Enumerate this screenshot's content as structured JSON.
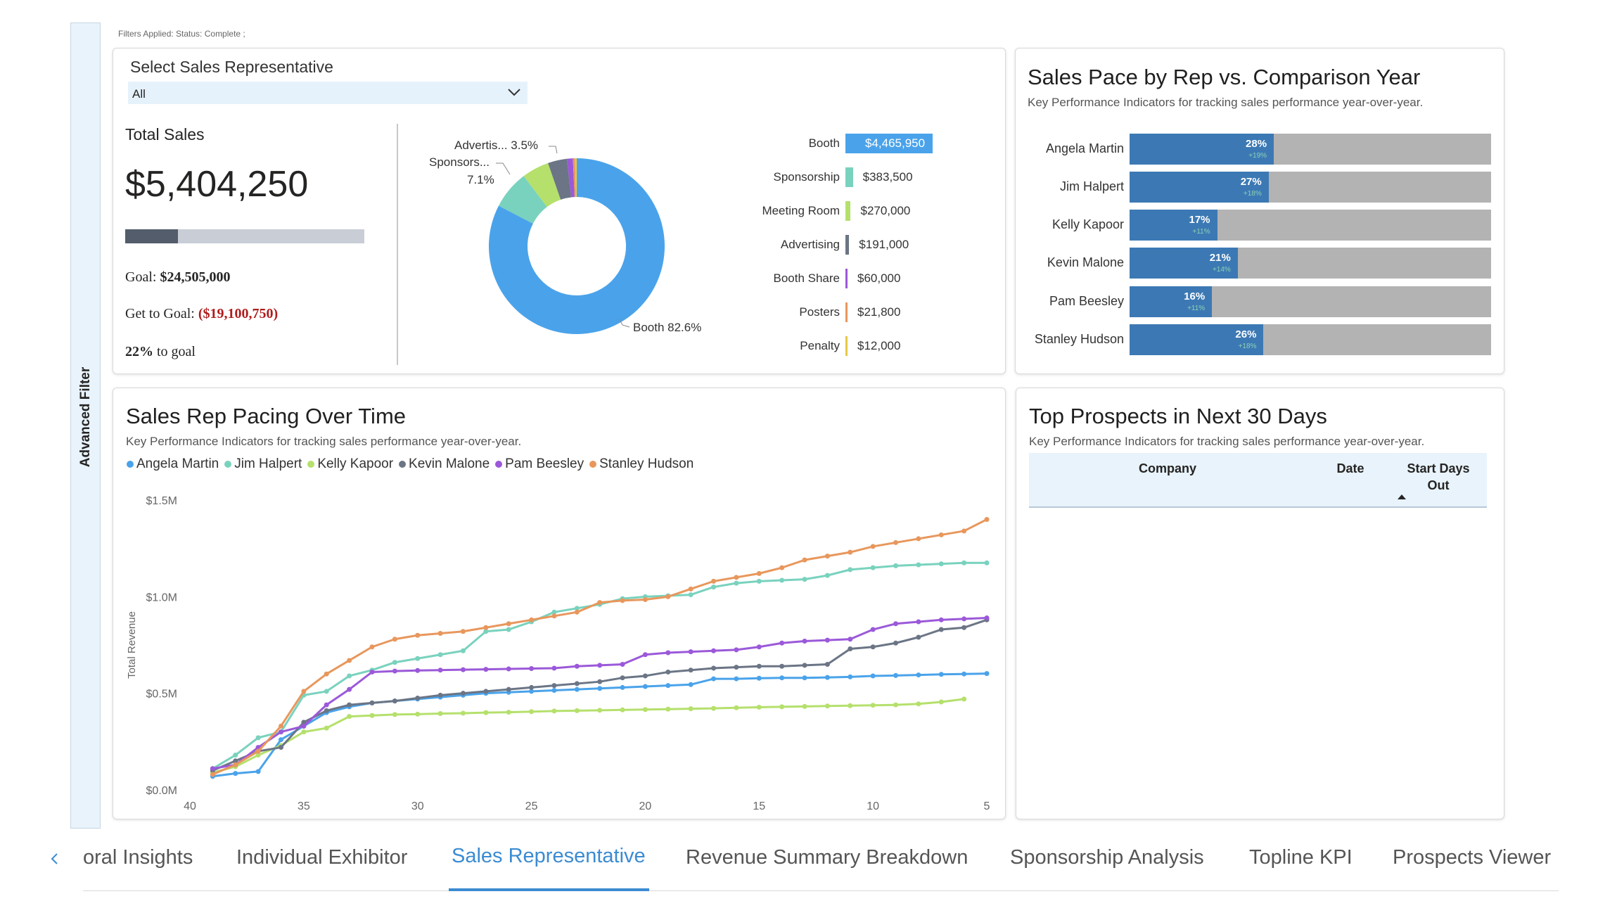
{
  "advanced_filter_label": "Advanced Filter",
  "filters_applied": "Filters Applied: Status: Complete ;",
  "selector": {
    "label": "Select Sales Representative",
    "value": "All"
  },
  "total_sales": {
    "label": "Total Sales",
    "value": "$5,404,250",
    "progress_fraction": 0.22,
    "goal_label": "Goal: ",
    "goal_value": "$24,505,000",
    "get_to_goal_label": "Get to Goal: ",
    "get_to_goal_value": "($19,100,750)",
    "pct_value": "22%",
    "pct_suffix": " to goal",
    "neg_color": "#b01c1c"
  },
  "donut": {
    "slices": [
      {
        "name": "Booth",
        "pct": 82.6,
        "color": "#4aa3ea"
      },
      {
        "name": "Sponsorship",
        "pct": 7.1,
        "color": "#79d2be"
      },
      {
        "name": "Meeting Room",
        "pct": 5.0,
        "color": "#b5e06c"
      },
      {
        "name": "Advertising",
        "pct": 3.5,
        "color": "#6b7585"
      },
      {
        "name": "Booth Share",
        "pct": 1.1,
        "color": "#9b59d9"
      },
      {
        "name": "Posters",
        "pct": 0.4,
        "color": "#e8975c"
      },
      {
        "name": "Penalty",
        "pct": 0.3,
        "color": "#e6c84a"
      }
    ],
    "labels": {
      "advertising": "Advertis... 3.5%",
      "sponsorship_name": "Sponsors...",
      "sponsorship_pct": "7.1%",
      "booth": "Booth 82.6%"
    }
  },
  "breakdown": [
    {
      "label": "Booth",
      "value": "$4,465,950",
      "amount": 4465950,
      "color": "#4aa3ea"
    },
    {
      "label": "Sponsorship",
      "value": "$383,500",
      "amount": 383500,
      "color": "#79d2be"
    },
    {
      "label": "Meeting Room",
      "value": "$270,000",
      "amount": 270000,
      "color": "#b5e06c"
    },
    {
      "label": "Advertising",
      "value": "$191,000",
      "amount": 191000,
      "color": "#6b7585"
    },
    {
      "label": "Booth Share",
      "value": "$60,000",
      "amount": 60000,
      "color": "#9b59d9"
    },
    {
      "label": "Posters",
      "value": "$21,800",
      "amount": 21800,
      "color": "#e8975c"
    },
    {
      "label": "Penalty",
      "value": "$12,000",
      "amount": 12000,
      "color": "#e6c84a"
    }
  ],
  "pace": {
    "title": "Sales Pace by Rep vs. Comparison Year",
    "subtitle": "Key Performance Indicators for tracking sales performance year-over-year.",
    "reps": [
      {
        "name": "Angela Martin",
        "pct": "28%",
        "delta": "+19%",
        "fraction": 0.28
      },
      {
        "name": "Jim Halpert",
        "pct": "27%",
        "delta": "+18%",
        "fraction": 0.27
      },
      {
        "name": "Kelly Kapoor",
        "pct": "17%",
        "delta": "+11%",
        "fraction": 0.17
      },
      {
        "name": "Kevin Malone",
        "pct": "21%",
        "delta": "+14%",
        "fraction": 0.21
      },
      {
        "name": "Pam Beesley",
        "pct": "16%",
        "delta": "+11%",
        "fraction": 0.16
      },
      {
        "name": "Stanley Hudson",
        "pct": "26%",
        "delta": "+18%",
        "fraction": 0.26
      }
    ]
  },
  "pacing": {
    "title": "Sales Rep Pacing Over Time",
    "subtitle": "Key Performance Indicators for tracking sales performance year-over-year."
  },
  "prospects": {
    "title": "Top Prospects in Next 30 Days",
    "subtitle": "Key Performance Indicators for tracking sales performance year-over-year.",
    "columns": {
      "company": "Company",
      "date": "Date",
      "start_days_1": "Start Days",
      "start_days_2": "Out"
    }
  },
  "tabs": [
    {
      "label": "oral Insights",
      "active": false
    },
    {
      "label": "Individual Exhibitor",
      "active": false
    },
    {
      "label": "Sales Representative",
      "active": true
    },
    {
      "label": "Revenue Summary Breakdown",
      "active": false
    },
    {
      "label": "Sponsorship Analysis",
      "active": false
    },
    {
      "label": "Topline KPI",
      "active": false
    },
    {
      "label": "Prospects Viewer",
      "active": false
    }
  ],
  "chart_data": {
    "type": "line",
    "title": "Sales Rep Pacing Over Time",
    "xlabel": "",
    "ylabel": "Total Revenue",
    "xlim": [
      40,
      5
    ],
    "ylim": [
      0,
      1500000
    ],
    "x_ticks": [
      "40",
      "35",
      "30",
      "25",
      "20",
      "15",
      "10",
      "5"
    ],
    "y_ticks": [
      "$0.0M",
      "$0.5M",
      "$1.0M",
      "$1.5M"
    ],
    "y_tick_values": [
      0,
      500000,
      1000000,
      1500000
    ],
    "legend_position": "top-left",
    "series": [
      {
        "name": "Angela Martin",
        "color": "#4aa3ea",
        "x": [
          39,
          38,
          37,
          36,
          35,
          34,
          33,
          32,
          31,
          30,
          29,
          28,
          27,
          26,
          25,
          24,
          23,
          22,
          21,
          20,
          19,
          18,
          17,
          16,
          15,
          14,
          13,
          12,
          11,
          10,
          9,
          8,
          7,
          6,
          5
        ],
        "values": [
          70000,
          85000,
          95000,
          260000,
          330000,
          400000,
          430000,
          450000,
          460000,
          470000,
          480000,
          490000,
          500000,
          505000,
          510000,
          515000,
          520000,
          525000,
          530000,
          535000,
          540000,
          545000,
          575000,
          575000,
          578000,
          580000,
          580000,
          582000,
          585000,
          590000,
          592000,
          595000,
          598000,
          600000,
          602000
        ]
      },
      {
        "name": "Jim Halpert",
        "color": "#79d2be",
        "x": [
          39,
          38,
          37,
          36,
          35,
          34,
          33,
          32,
          31,
          30,
          29,
          28,
          27,
          26,
          25,
          24,
          23,
          22,
          21,
          20,
          19,
          18,
          17,
          16,
          15,
          14,
          13,
          12,
          11,
          10,
          9,
          8,
          7,
          6,
          5
        ],
        "values": [
          110000,
          180000,
          270000,
          300000,
          490000,
          510000,
          590000,
          620000,
          660000,
          680000,
          700000,
          720000,
          820000,
          830000,
          870000,
          920000,
          940000,
          960000,
          990000,
          1000000,
          1005000,
          1010000,
          1050000,
          1070000,
          1080000,
          1085000,
          1090000,
          1110000,
          1140000,
          1150000,
          1160000,
          1165000,
          1170000,
          1175000,
          1175000
        ]
      },
      {
        "name": "Kelly Kapoor",
        "color": "#b5e06c",
        "x": [
          39,
          38,
          37,
          36,
          35,
          34,
          33,
          32,
          31,
          30,
          29,
          28,
          27,
          26,
          25,
          24,
          23,
          22,
          21,
          20,
          19,
          18,
          17,
          16,
          15,
          14,
          13,
          12,
          11,
          10,
          9,
          8,
          7,
          6
        ],
        "values": [
          90000,
          120000,
          180000,
          230000,
          300000,
          320000,
          380000,
          385000,
          390000,
          392000,
          395000,
          397000,
          400000,
          402000,
          405000,
          408000,
          410000,
          412000,
          414000,
          416000,
          418000,
          420000,
          422000,
          425000,
          428000,
          430000,
          432000,
          434000,
          436000,
          438000,
          440000,
          445000,
          455000,
          470000
        ]
      },
      {
        "name": "Kevin Malone",
        "color": "#6b7585",
        "x": [
          39,
          38,
          37,
          36,
          35,
          34,
          33,
          32,
          31,
          30,
          29,
          28,
          27,
          26,
          25,
          24,
          23,
          22,
          21,
          20,
          19,
          18,
          17,
          16,
          15,
          14,
          13,
          12,
          11,
          10,
          9,
          8,
          7,
          6,
          5
        ],
        "values": [
          100000,
          150000,
          200000,
          220000,
          350000,
          410000,
          440000,
          450000,
          460000,
          475000,
          490000,
          500000,
          510000,
          520000,
          530000,
          540000,
          550000,
          560000,
          580000,
          590000,
          610000,
          620000,
          630000,
          635000,
          640000,
          640000,
          645000,
          650000,
          730000,
          740000,
          760000,
          790000,
          830000,
          840000,
          880000
        ]
      },
      {
        "name": "Pam Beesley",
        "color": "#9b59d9",
        "x": [
          39,
          38,
          37,
          36,
          35,
          34,
          33,
          32,
          31,
          30,
          29,
          28,
          27,
          26,
          25,
          24,
          23,
          22,
          21,
          20,
          19,
          18,
          17,
          16,
          15,
          14,
          13,
          12,
          11,
          10,
          9,
          8,
          7,
          6,
          5
        ],
        "values": [
          110000,
          130000,
          220000,
          300000,
          330000,
          440000,
          520000,
          610000,
          615000,
          618000,
          620000,
          622000,
          624000,
          626000,
          628000,
          630000,
          640000,
          645000,
          650000,
          700000,
          710000,
          715000,
          720000,
          725000,
          740000,
          760000,
          770000,
          775000,
          780000,
          830000,
          860000,
          870000,
          880000,
          885000,
          890000
        ]
      },
      {
        "name": "Stanley Hudson",
        "color": "#e8975c",
        "x": [
          39,
          38,
          37,
          36,
          35,
          34,
          33,
          32,
          31,
          30,
          29,
          28,
          27,
          26,
          25,
          24,
          23,
          22,
          21,
          20,
          19,
          18,
          17,
          16,
          15,
          14,
          13,
          12,
          11,
          10,
          9,
          8,
          7,
          6,
          5
        ],
        "values": [
          80000,
          130000,
          200000,
          330000,
          510000,
          600000,
          670000,
          740000,
          780000,
          800000,
          810000,
          820000,
          840000,
          860000,
          880000,
          900000,
          920000,
          970000,
          980000,
          985000,
          1000000,
          1040000,
          1080000,
          1100000,
          1120000,
          1150000,
          1190000,
          1210000,
          1230000,
          1260000,
          1280000,
          1300000,
          1320000,
          1340000,
          1400000
        ]
      }
    ]
  }
}
